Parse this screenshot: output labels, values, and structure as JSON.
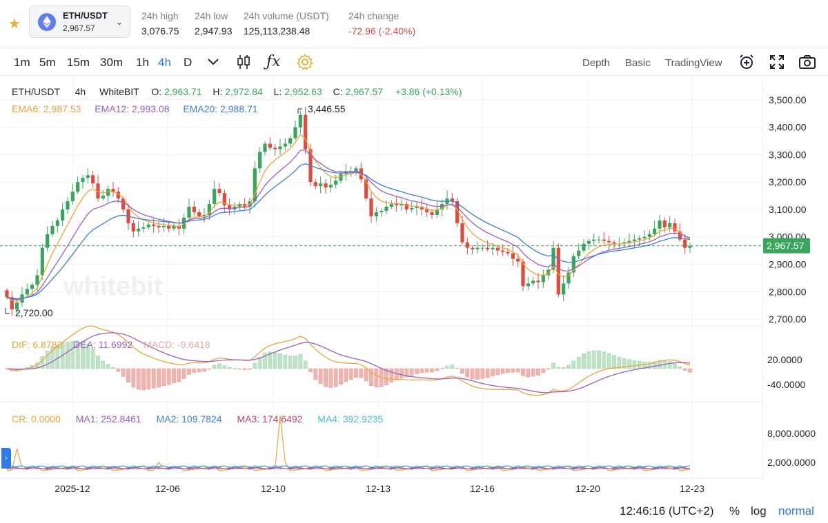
{
  "header": {
    "pair_label": "ETH/USDT",
    "pair_price": "2,967.57",
    "stats": [
      {
        "label": "24h high",
        "value": "3,076.75",
        "tone": "normal"
      },
      {
        "label": "24h low",
        "value": "2,947.93",
        "tone": "normal"
      },
      {
        "label": "24h volume (USDT)",
        "value": "125,113,238.48",
        "tone": "normal"
      },
      {
        "label": "24h change",
        "value": "-72.96  (-2.40%)",
        "tone": "red"
      }
    ]
  },
  "toolbar": {
    "intervals": [
      "1m",
      "5m",
      "15m",
      "30m",
      "1h",
      "4h",
      "D"
    ],
    "active_interval": "4h",
    "views": [
      "Depth",
      "Basic",
      "TradingView"
    ],
    "active_view": "Basic"
  },
  "legend": {
    "symbol": "ETH/USDT",
    "interval": "4h",
    "exchange": "WhiteBIT",
    "o_label": "O:",
    "o_value": "2,963.71",
    "h_label": "H:",
    "h_value": "2,972.84",
    "l_label": "L:",
    "l_value": "2,952.63",
    "c_label": "C:",
    "c_value": "2,967.57",
    "change": "+3.86 (+0.13%)",
    "ema6": "EMA6: 2,987.53",
    "ema12": "EMA12: 2,993.08",
    "ema20": "EMA20: 2,988.71",
    "max_marker": "3,446.55",
    "min_marker": "2,720.00",
    "watermark": "whitebit"
  },
  "macd_legend": {
    "dif": "DIF: 6.8783",
    "dea": "DEA: 11.6992",
    "macd": "MACD: -9.6418"
  },
  "cr_legend": {
    "cr": "CR: 0.0000",
    "ma1": "MA1: 252.8461",
    "ma2": "MA2: 109.7824",
    "ma3": "MA3: 174.6492",
    "ma4": "MA4: 392.9235"
  },
  "colors": {
    "up": "#3aa55d",
    "down": "#e04a3f",
    "ema6": "#f0a33a",
    "ema12": "#9a5fc1",
    "ema20": "#3b7de0",
    "accent": "#2f7ae5"
  },
  "chart_data": {
    "type": "candlestick",
    "price_axis": [
      "3,500.00",
      "3,400.00",
      "3,300.00",
      "3,200.00",
      "3,100.00",
      "3,000.00",
      "2,900.00",
      "2,800.00",
      "2,700.00"
    ],
    "ylim": [
      2680,
      3540
    ],
    "last_price": "2,967.57",
    "macd_axis": [
      "20.0000",
      "-40.0000"
    ],
    "cr_axis": [
      "8,000.0000",
      "2,000.0000"
    ],
    "x_labels": [
      "2025-12",
      "12-06",
      "12-10",
      "12-13",
      "12-16",
      "12-20",
      "12-23"
    ],
    "closes": [
      2780,
      2735,
      2760,
      2790,
      2810,
      2825,
      2860,
      2960,
      3010,
      3040,
      3060,
      3100,
      3130,
      3165,
      3200,
      3215,
      3225,
      3195,
      3140,
      3150,
      3175,
      3165,
      3140,
      3100,
      3050,
      3020,
      3030,
      3035,
      3045,
      3040,
      3035,
      3040,
      3030,
      3040,
      3030,
      3070,
      3110,
      3090,
      3075,
      3080,
      3120,
      3175,
      3160,
      3115,
      3100,
      3110,
      3120,
      3110,
      3130,
      3250,
      3310,
      3340,
      3325,
      3320,
      3330,
      3340,
      3360,
      3400,
      3445,
      3320,
      3200,
      3185,
      3195,
      3180,
      3190,
      3205,
      3230,
      3240,
      3240,
      3250,
      3210,
      3140,
      3075,
      3090,
      3095,
      3110,
      3120,
      3115,
      3120,
      3100,
      3105,
      3110,
      3100,
      3090,
      3080,
      3100,
      3120,
      3140,
      3130,
      3050,
      2980,
      2960,
      2955,
      2960,
      2960,
      2955,
      2960,
      2950,
      2945,
      2940,
      2920,
      2910,
      2820,
      2830,
      2840,
      2835,
      2860,
      2880,
      2960,
      2790,
      2830,
      2870,
      2930,
      2950,
      2975,
      2985,
      2990,
      2990,
      2985,
      2980,
      2975,
      2975,
      2980,
      2985,
      2990,
      2995,
      3000,
      3010,
      3030,
      3060,
      3035,
      3050,
      3020,
      2990,
      2960,
      2967
    ]
  }
}
